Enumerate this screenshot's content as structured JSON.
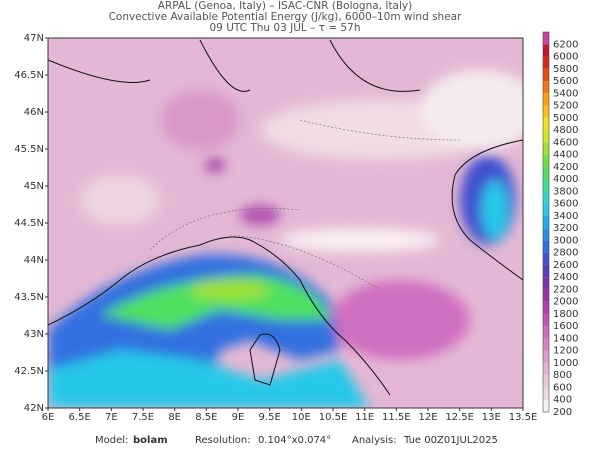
{
  "header": {
    "line1": "ARPAL (Genoa, Italy)  –  ISAC-CNR (Bologna, Italy)",
    "line2": "Convective Available Potential Energy (J/kg), 6000–10m wind shear",
    "line3": "09 UTC Thu 03 JUL  –  τ = 57h"
  },
  "map": {
    "lat_labels": [
      "47N",
      "46.5N",
      "46N",
      "45.5N",
      "45N",
      "44.5N",
      "44N",
      "43.5N",
      "43N",
      "42.5N",
      "42N"
    ],
    "lon_labels": [
      "6E",
      "6.5E",
      "7E",
      "7.5E",
      "8E",
      "8.5E",
      "9E",
      "9.5E",
      "10E",
      "10.5E",
      "11E",
      "11.5E",
      "12E",
      "12.5E",
      "13E",
      "13.5E"
    ]
  },
  "colorbar": {
    "levels": [
      200,
      400,
      600,
      800,
      1000,
      1200,
      1400,
      1600,
      1800,
      2000,
      2200,
      2400,
      2600,
      2800,
      3000,
      3200,
      3400,
      3600,
      3800,
      4000,
      4200,
      4400,
      4600,
      4800,
      5000,
      5200,
      5400,
      5600,
      5800,
      6000,
      6200
    ],
    "colors": [
      "#f4f0f0",
      "#eadcdc",
      "#e8c8d8",
      "#e4b4d4",
      "#dc9ccc",
      "#d884c4",
      "#d06cbc",
      "#c454b4",
      "#b43cac",
      "#9c30a8",
      "#7c30b0",
      "#5c3cc0",
      "#4050d0",
      "#3070e0",
      "#2890e8",
      "#20b0f0",
      "#28c8e8",
      "#30d8c8",
      "#40e090",
      "#50e060",
      "#70e040",
      "#a0e030",
      "#d0e828",
      "#f0e020",
      "#f8c018",
      "#f8a010",
      "#f07810",
      "#e84c10",
      "#d82818",
      "#c01830",
      "#d040a0"
    ]
  },
  "footer": {
    "model_label": "Model:",
    "model": "bolam",
    "resolution_label": "Resolution:",
    "resolution": "0.104°x0.074°",
    "analysis_label": "Analysis:",
    "analysis": "Tue 00Z01JUL2025"
  }
}
